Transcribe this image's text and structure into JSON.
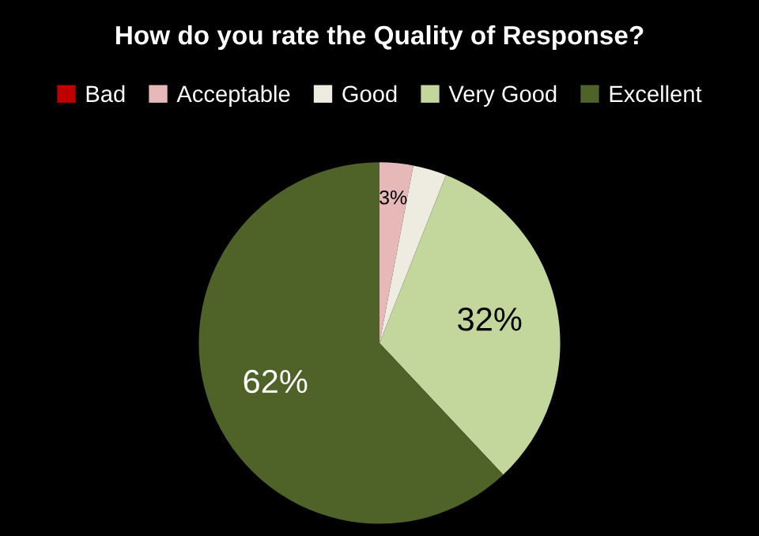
{
  "chart_data": {
    "type": "pie",
    "title": "How do you rate the Quality of Response?",
    "categories": [
      "Bad",
      "Acceptable",
      "Good",
      "Very Good",
      "Excellent"
    ],
    "values": [
      0,
      3,
      3,
      32,
      62
    ],
    "colors": [
      "#c00000",
      "#e6b9b8",
      "#eeece1",
      "#c3d69b",
      "#4f6228"
    ],
    "value_labels": [
      null,
      "3%",
      null,
      "32%",
      "62%"
    ],
    "legend": "top"
  }
}
